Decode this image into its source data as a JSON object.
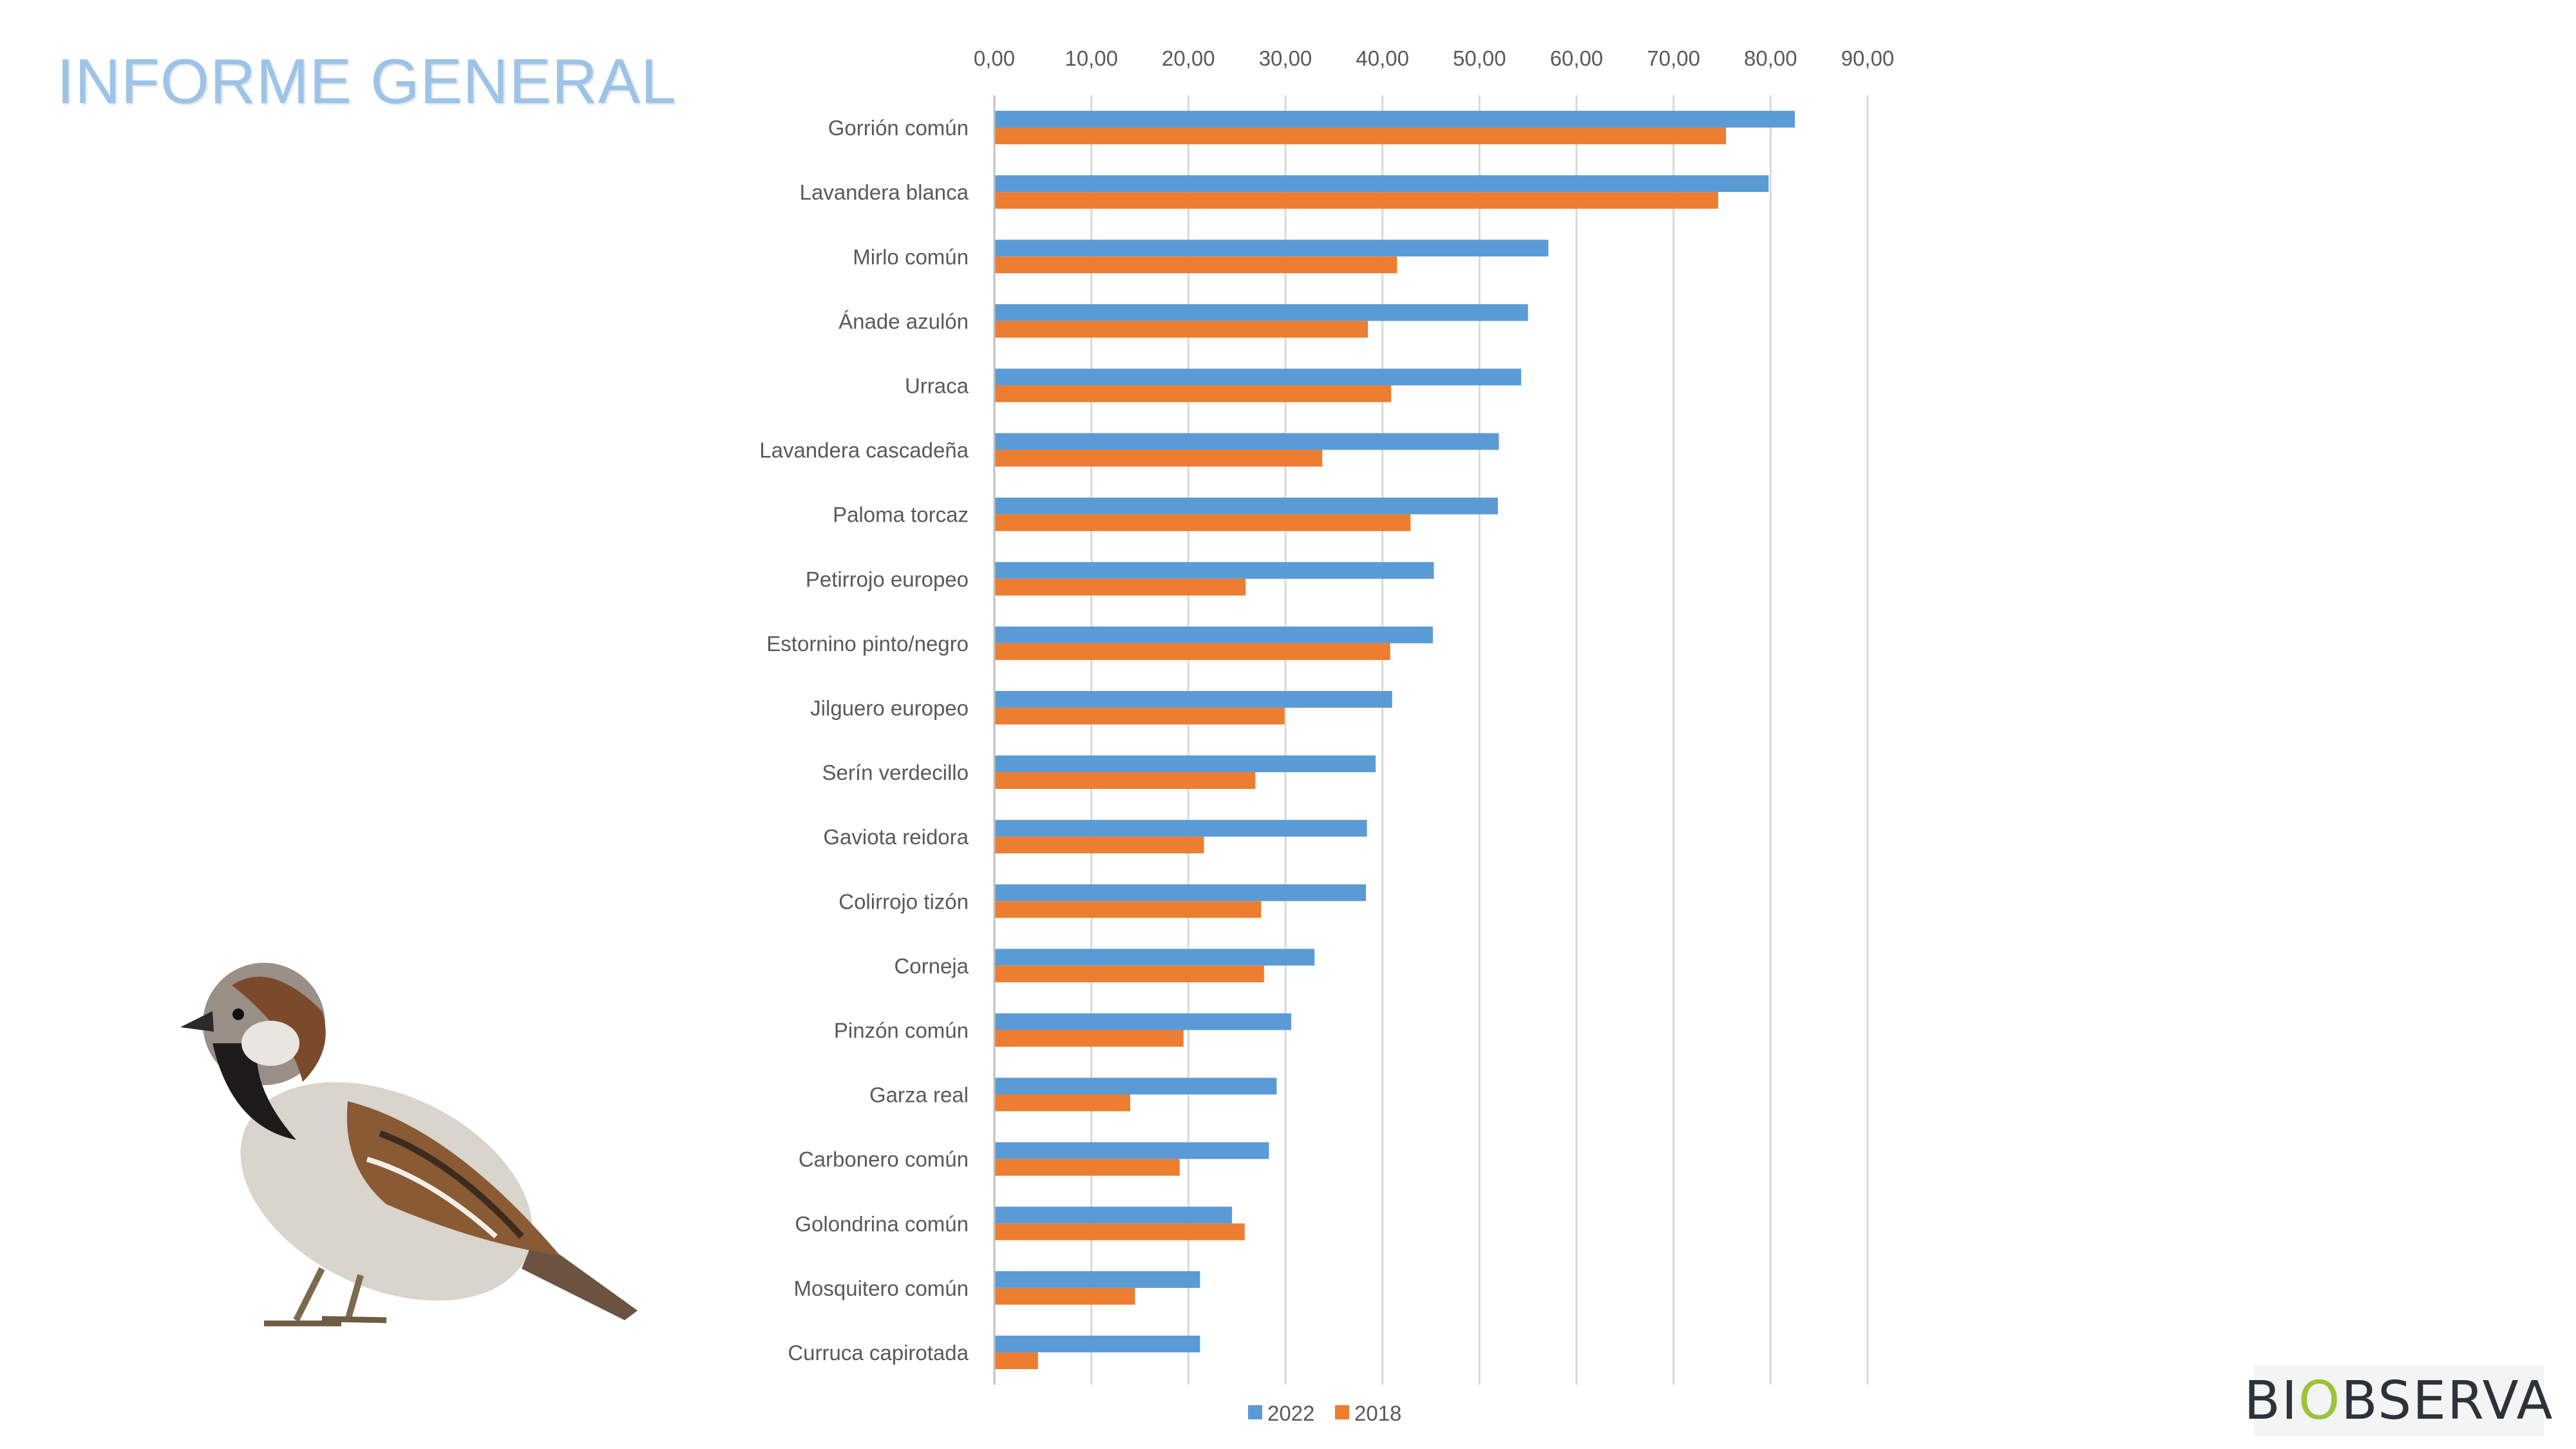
{
  "title": "INFORME GENERAL",
  "logo": {
    "text": "BIOBSERVA",
    "part_a": "BI",
    "part_o": "O",
    "part_b": "BSERVA"
  },
  "colors": {
    "title": "#9dc3e6",
    "s2022": "#5b9bd5",
    "s2018": "#ed7d31",
    "grid": "#d9d9d9",
    "text": "#595959",
    "logo_accent": "#9ac33c"
  },
  "chart_data": {
    "type": "bar",
    "orientation": "horizontal",
    "categories": [
      "Gorrión común",
      "Lavandera blanca",
      "Mirlo común",
      "Ánade azulón",
      "Urraca",
      "Lavandera cascadeña",
      "Paloma torcaz",
      "Petirrojo europeo",
      "Estornino pinto/negro",
      "Jilguero europeo",
      "Serín verdecillo",
      "Gaviota reidora",
      "Colirrojo tizón",
      "Corneja",
      "Pinzón común",
      "Garza real",
      "Carbonero común",
      "Golondrina común",
      "Mosquitero común",
      "Curruca capirotada"
    ],
    "series": [
      {
        "name": "2022",
        "color": "#5b9bd5",
        "values": [
          82.5,
          79.8,
          57.1,
          55.0,
          54.3,
          52.0,
          51.9,
          45.3,
          45.2,
          41.0,
          39.3,
          38.4,
          38.3,
          33.0,
          30.6,
          29.1,
          28.3,
          24.5,
          21.2,
          21.2
        ]
      },
      {
        "name": "2018",
        "color": "#ed7d31",
        "values": [
          75.4,
          74.6,
          41.5,
          38.5,
          40.9,
          33.8,
          42.9,
          25.9,
          40.8,
          29.9,
          26.9,
          21.6,
          27.5,
          27.8,
          19.5,
          14.0,
          19.1,
          25.8,
          14.5,
          4.5
        ]
      }
    ],
    "xlim": [
      0,
      90
    ],
    "xticks": [
      "0,00",
      "10,00",
      "20,00",
      "30,00",
      "40,00",
      "50,00",
      "60,00",
      "70,00",
      "80,00",
      "90,00"
    ],
    "xaxis_position": "top",
    "grid": true,
    "legend_position": "bottom"
  }
}
